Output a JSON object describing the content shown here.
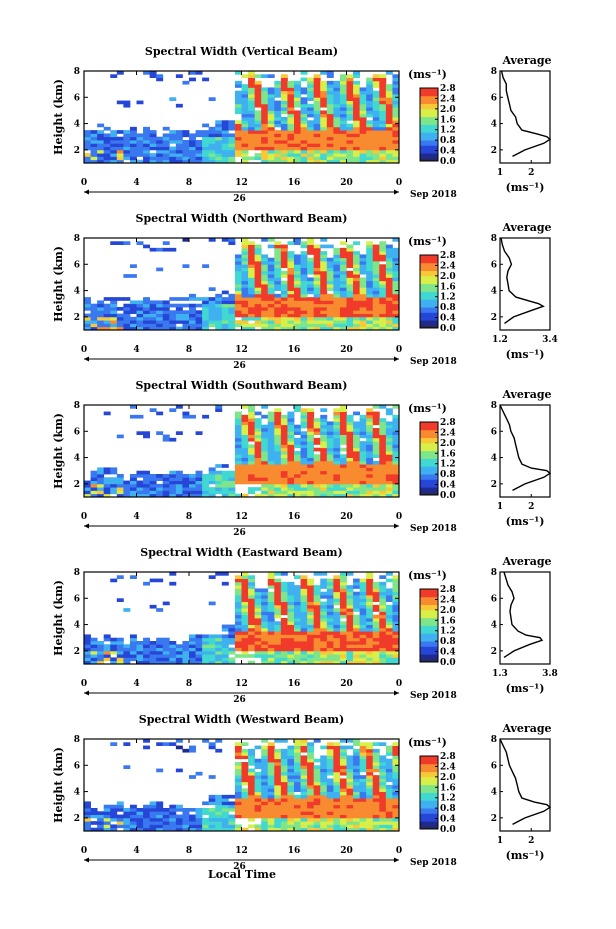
{
  "figure": {
    "xlabel": "Local Time",
    "date_label": "Sep 2018",
    "day_label": "26",
    "x_tick_labels": [
      "0",
      "4",
      "8",
      "12",
      "16",
      "20",
      "0"
    ],
    "y_tick_labels": [
      "2",
      "4",
      "6",
      "8"
    ],
    "ylabel": "Height (km)",
    "units_label": "(ms⁻¹)",
    "colorbar_tick_labels": [
      "0.0",
      "0.4",
      "0.8",
      "1.2",
      "1.6",
      "2.0",
      "2.4",
      "2.8"
    ],
    "profile_title": "Average",
    "profile_xlabel": "(ms⁻¹)",
    "colors": {
      "colormap": [
        "#1e2a8c",
        "#2546d6",
        "#3a78f0",
        "#3fb0f0",
        "#40d8d0",
        "#7fe58a",
        "#d8ef4a",
        "#f8c838",
        "#f88a30",
        "#f03a2a"
      ],
      "lowest_bin": "#2a2a50"
    }
  },
  "chart_data": [
    {
      "type": "heatmap",
      "title": "Spectral Width (Vertical Beam)",
      "x_unit": "local time (hours, 26 Sep 2018)",
      "xlim": [
        0,
        24
      ],
      "ylim": [
        1,
        8
      ],
      "clim": [
        0,
        2.8
      ],
      "features": {
        "echo_top_night_km": 3.5,
        "bright_layer_km": [
          2.0,
          3.6
        ],
        "onset_hour": 11.5,
        "high_value_ms": 2.6
      },
      "profile": {
        "xlim": [
          1,
          2.6
        ],
        "x_tick_labels": [
          "1",
          "2"
        ],
        "height_km": [
          1.5,
          2.0,
          2.5,
          2.8,
          3.0,
          3.2,
          3.5,
          4.0,
          4.5,
          5.0,
          5.5,
          6.0,
          6.5,
          7.0,
          7.5,
          8.0
        ],
        "value_ms": [
          1.4,
          1.8,
          2.4,
          2.6,
          2.5,
          2.2,
          1.7,
          1.55,
          1.5,
          1.35,
          1.3,
          1.25,
          1.2,
          1.2,
          1.1,
          1.05
        ]
      }
    },
    {
      "type": "heatmap",
      "title": "Spectral Width (Northward Beam)",
      "x_unit": "local time (hours, 26 Sep 2018)",
      "xlim": [
        0,
        24
      ],
      "ylim": [
        1,
        8
      ],
      "clim": [
        0,
        2.8
      ],
      "features": {
        "echo_top_night_km": 3.3,
        "bright_layer_km": [
          2.0,
          3.6
        ],
        "onset_hour": 11.5,
        "high_value_ms": 2.7
      },
      "profile": {
        "xlim": [
          1.2,
          3.4
        ],
        "x_tick_labels": [
          "1.2",
          "3.4"
        ],
        "height_km": [
          1.5,
          2.0,
          2.5,
          2.8,
          3.0,
          3.2,
          3.5,
          4.0,
          4.5,
          5.0,
          5.5,
          6.0,
          6.5,
          7.0,
          7.5,
          8.0
        ],
        "value_ms": [
          1.4,
          1.8,
          2.6,
          3.1,
          2.9,
          2.5,
          1.9,
          1.6,
          1.55,
          1.5,
          1.55,
          1.7,
          1.6,
          1.4,
          1.3,
          1.25
        ]
      }
    },
    {
      "type": "heatmap",
      "title": "Spectral Width (Southward Beam)",
      "x_unit": "local time (hours, 26 Sep 2018)",
      "xlim": [
        0,
        24
      ],
      "ylim": [
        1,
        8
      ],
      "clim": [
        0,
        2.8
      ],
      "features": {
        "echo_top_night_km": 2.8,
        "bright_layer_km": [
          2.0,
          3.6
        ],
        "onset_hour": 11.5,
        "high_value_ms": 2.6
      },
      "profile": {
        "xlim": [
          1,
          2.6
        ],
        "x_tick_labels": [
          "1",
          "2"
        ],
        "height_km": [
          1.5,
          2.0,
          2.5,
          2.8,
          3.0,
          3.2,
          3.5,
          4.0,
          4.5,
          5.0,
          5.5,
          6.0,
          6.5,
          7.0,
          7.5,
          8.0
        ],
        "value_ms": [
          1.4,
          1.8,
          2.4,
          2.6,
          2.5,
          2.0,
          1.7,
          1.6,
          1.55,
          1.5,
          1.45,
          1.35,
          1.3,
          1.2,
          1.1,
          1.0
        ]
      }
    },
    {
      "type": "heatmap",
      "title": "Spectral Width (Eastward Beam)",
      "x_unit": "local time (hours, 26 Sep 2018)",
      "xlim": [
        0,
        24
      ],
      "ylim": [
        1,
        8
      ],
      "clim": [
        0,
        2.8
      ],
      "features": {
        "echo_top_night_km": 2.9,
        "bright_layer_km": [
          2.0,
          3.6
        ],
        "onset_hour": 11.5,
        "high_value_ms": 2.7
      },
      "profile": {
        "xlim": [
          1.3,
          3.8
        ],
        "x_tick_labels": [
          "1.3",
          "3.8"
        ],
        "height_km": [
          1.5,
          2.0,
          2.5,
          2.8,
          3.0,
          3.2,
          3.5,
          4.0,
          4.5,
          5.0,
          5.5,
          6.0,
          6.5,
          7.0,
          7.5,
          8.0
        ],
        "value_ms": [
          1.5,
          2.0,
          2.8,
          3.4,
          3.3,
          2.6,
          2.2,
          1.9,
          1.85,
          1.8,
          1.85,
          2.0,
          1.9,
          1.7,
          1.6,
          1.5
        ]
      }
    },
    {
      "type": "heatmap",
      "title": "Spectral Width (Westward Beam)",
      "x_unit": "local time (hours, 26 Sep 2018)",
      "xlim": [
        0,
        24
      ],
      "ylim": [
        1,
        8
      ],
      "clim": [
        0,
        2.8
      ],
      "features": {
        "echo_top_night_km": 2.9,
        "bright_layer_km": [
          2.0,
          3.6
        ],
        "onset_hour": 11.5,
        "high_value_ms": 2.6
      },
      "profile": {
        "xlim": [
          1,
          2.6
        ],
        "x_tick_labels": [
          "1",
          "2"
        ],
        "height_km": [
          1.5,
          2.0,
          2.5,
          2.8,
          3.0,
          3.2,
          3.5,
          4.0,
          4.5,
          5.0,
          5.5,
          6.0,
          6.5,
          7.0,
          7.5,
          8.0
        ],
        "value_ms": [
          1.4,
          1.8,
          2.4,
          2.6,
          2.5,
          2.1,
          1.7,
          1.6,
          1.55,
          1.5,
          1.4,
          1.3,
          1.25,
          1.2,
          1.1,
          1.0
        ]
      }
    }
  ]
}
